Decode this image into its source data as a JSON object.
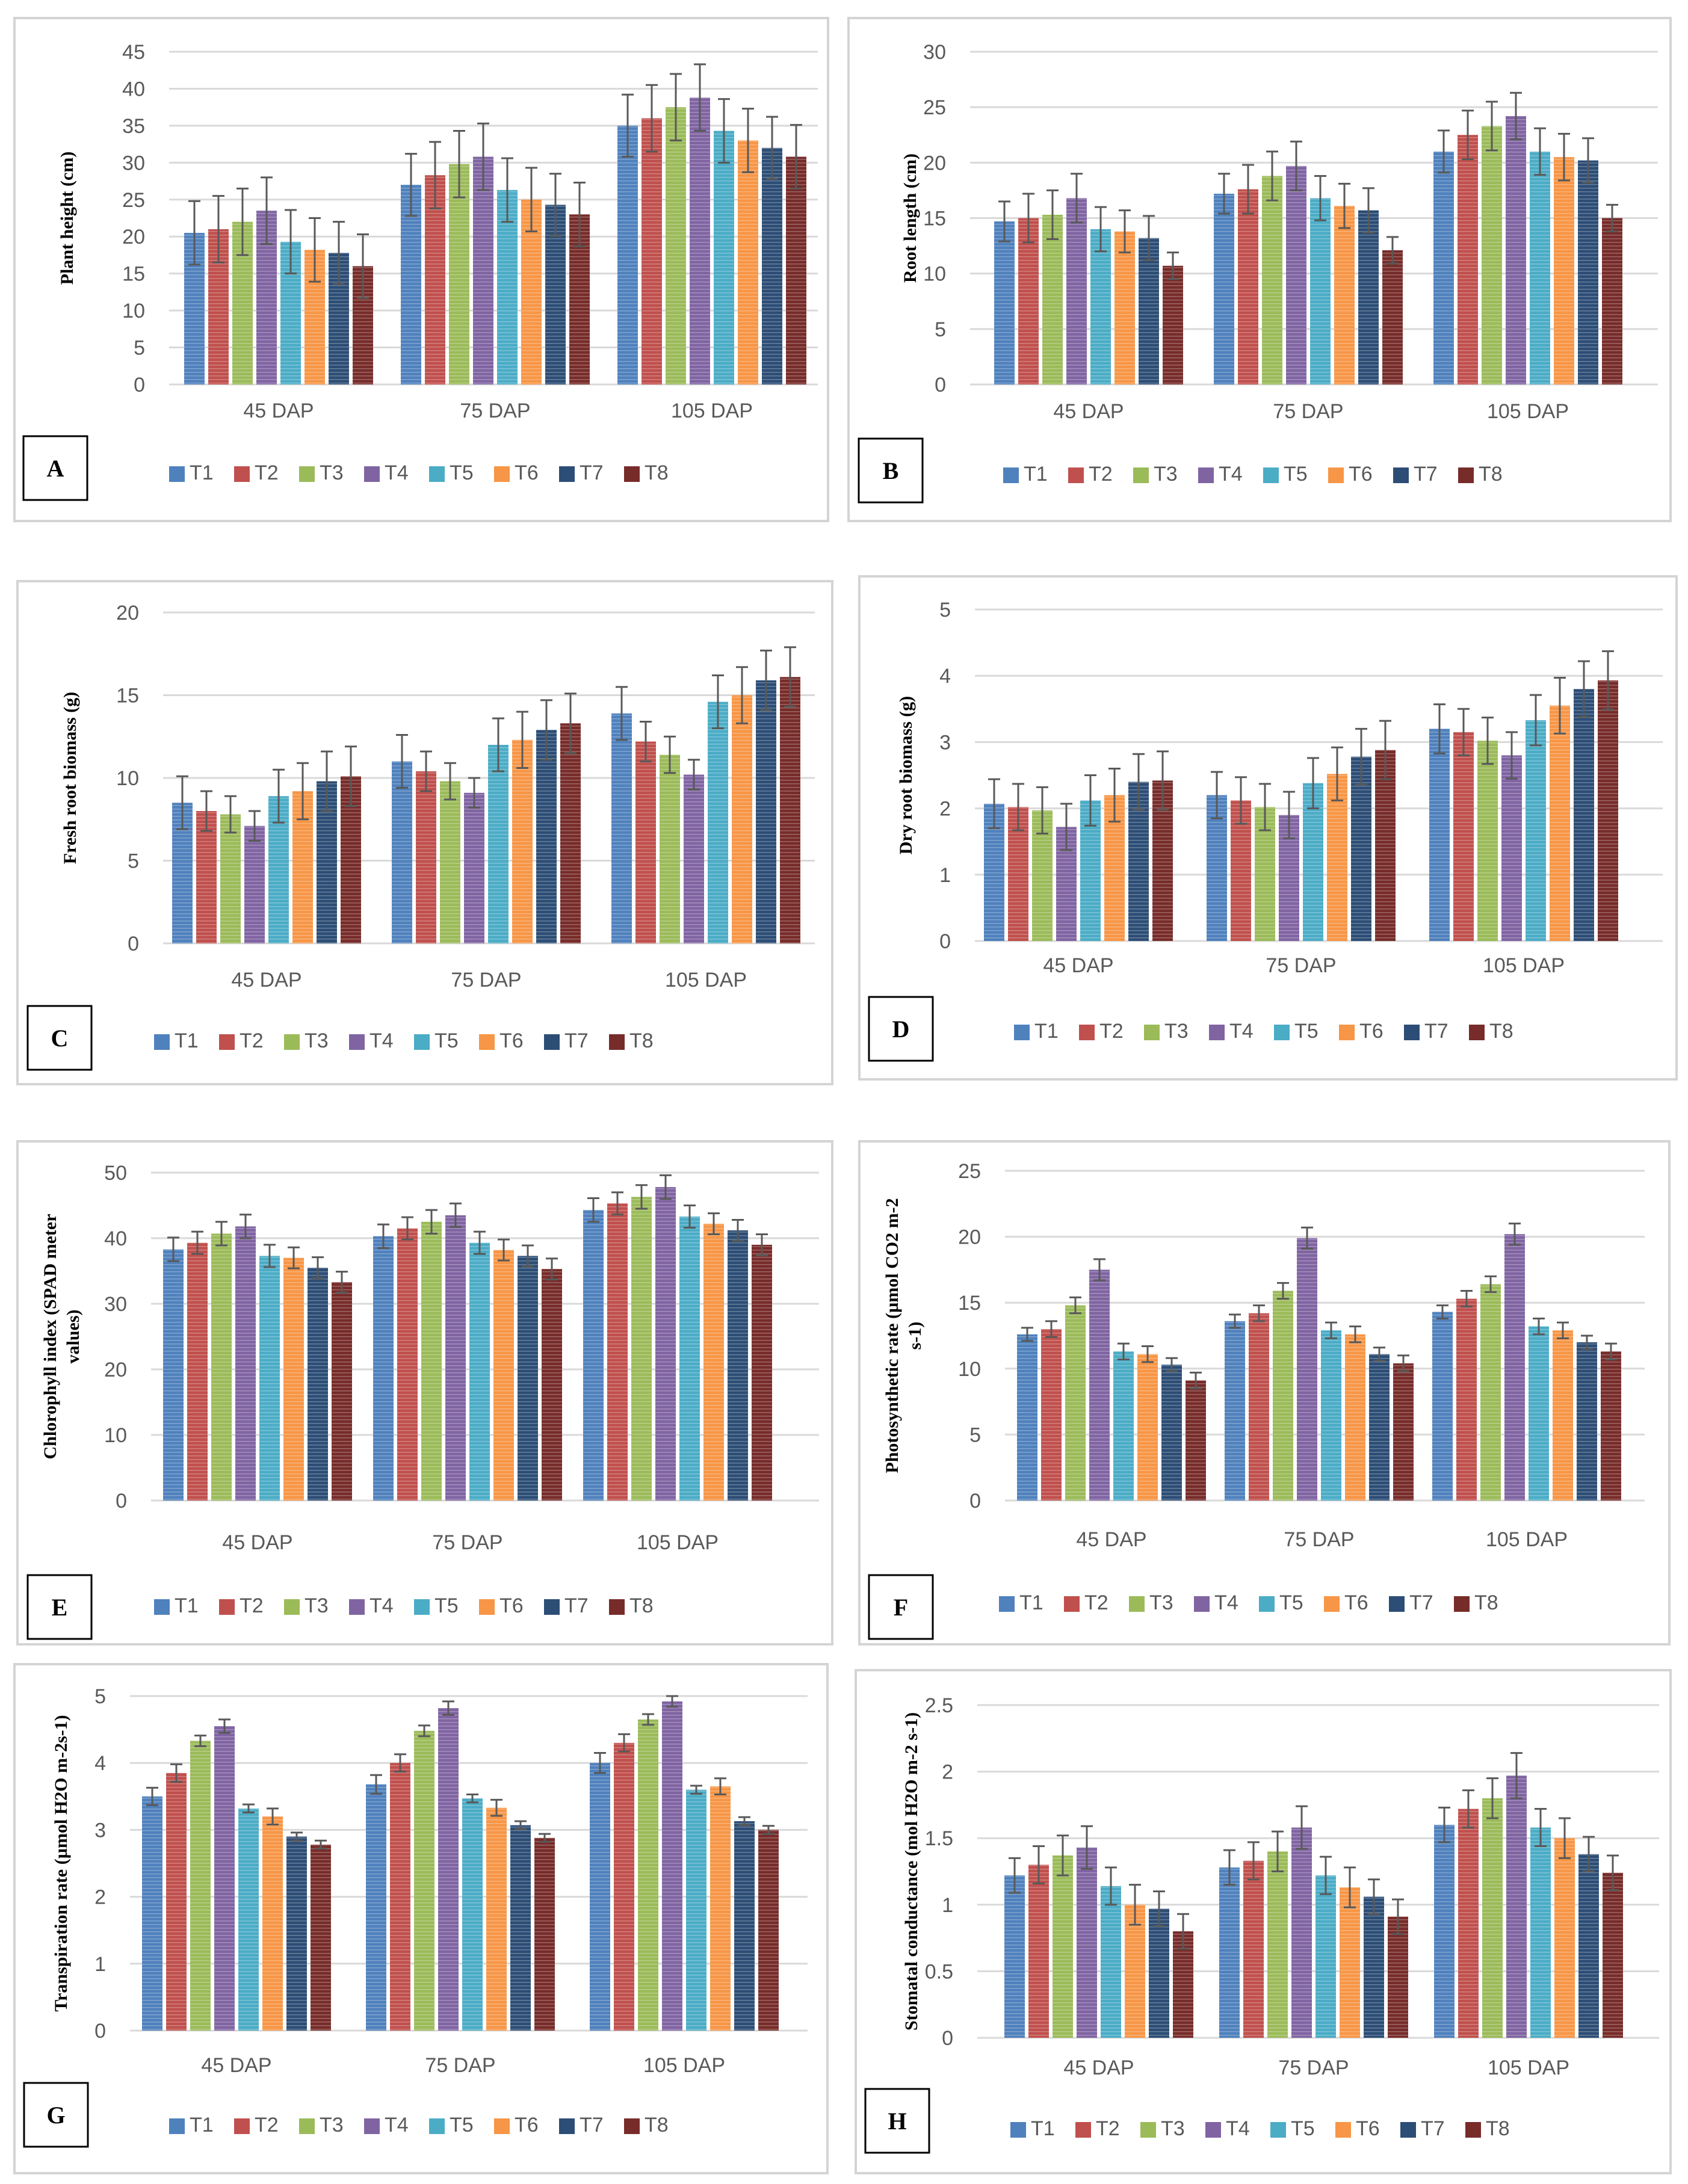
{
  "legend_labels": [
    "T1",
    "T2",
    "T3",
    "T4",
    "T5",
    "T6",
    "T7",
    "T8"
  ],
  "colors": {
    "T1": "#4f81bd",
    "T2": "#c0504d",
    "T3": "#9bbb59",
    "T4": "#8064a2",
    "T5": "#4bacc6",
    "T6": "#f79646",
    "T7": "#2c4d75",
    "T8": "#772c2a",
    "gridline": "#d9d9d9",
    "panel_border": "#d4d4d4",
    "error_bar": "#595959"
  },
  "chart_data": [
    {
      "panel": "A",
      "type": "bar",
      "ylabel": "Plant height (cm)",
      "categories": [
        "45 DAP",
        "75 DAP",
        "105 DAP"
      ],
      "ylim": [
        0,
        45
      ],
      "yticks": [
        0,
        5,
        10,
        15,
        20,
        25,
        30,
        35,
        40,
        45
      ],
      "series": [
        {
          "name": "T1",
          "values": [
            20.5,
            27,
            35
          ],
          "errors": [
            4.3,
            4.2,
            4.2
          ]
        },
        {
          "name": "T2",
          "values": [
            21,
            28.3,
            36
          ],
          "errors": [
            4.5,
            4.5,
            4.5
          ]
        },
        {
          "name": "T3",
          "values": [
            22,
            29.8,
            37.5
          ],
          "errors": [
            4.5,
            4.5,
            4.5
          ]
        },
        {
          "name": "T4",
          "values": [
            23.5,
            30.8,
            38.8
          ],
          "errors": [
            4.5,
            4.5,
            4.5
          ]
        },
        {
          "name": "T5",
          "values": [
            19.3,
            26.3,
            34.3
          ],
          "errors": [
            4.3,
            4.3,
            4.3
          ]
        },
        {
          "name": "T6",
          "values": [
            18.2,
            25,
            33
          ],
          "errors": [
            4.3,
            4.3,
            4.3
          ]
        },
        {
          "name": "T7",
          "values": [
            17.8,
            24.3,
            32
          ],
          "errors": [
            4.2,
            4.2,
            4.2
          ]
        },
        {
          "name": "T8",
          "values": [
            16,
            23,
            30.8
          ],
          "errors": [
            4.3,
            4.3,
            4.3
          ]
        }
      ]
    },
    {
      "panel": "B",
      "type": "bar",
      "ylabel": "Root length (cm)",
      "categories": [
        "45 DAP",
        "75 DAP",
        "105 DAP"
      ],
      "ylim": [
        0,
        30
      ],
      "yticks": [
        0,
        5,
        10,
        15,
        20,
        25,
        30
      ],
      "series": [
        {
          "name": "T1",
          "values": [
            14.7,
            17.2,
            21
          ],
          "errors": [
            1.8,
            1.8,
            1.9
          ]
        },
        {
          "name": "T2",
          "values": [
            15,
            17.6,
            22.5
          ],
          "errors": [
            2.2,
            2.2,
            2.2
          ]
        },
        {
          "name": "T3",
          "values": [
            15.3,
            18.8,
            23.3
          ],
          "errors": [
            2.2,
            2.2,
            2.2
          ]
        },
        {
          "name": "T4",
          "values": [
            16.8,
            19.7,
            24.2
          ],
          "errors": [
            2.2,
            2.2,
            2.1
          ]
        },
        {
          "name": "T5",
          "values": [
            14,
            16.8,
            21
          ],
          "errors": [
            2,
            2,
            2.1
          ]
        },
        {
          "name": "T6",
          "values": [
            13.8,
            16.1,
            20.5
          ],
          "errors": [
            1.9,
            2,
            2.1
          ]
        },
        {
          "name": "T7",
          "values": [
            13.2,
            15.7,
            20.2
          ],
          "errors": [
            2,
            2,
            2
          ]
        },
        {
          "name": "T8",
          "values": [
            10.7,
            12.1,
            15
          ],
          "errors": [
            1.2,
            1.2,
            1.2
          ]
        }
      ]
    },
    {
      "panel": "C",
      "type": "bar",
      "ylabel": "Fresh root biomass (g)",
      "categories": [
        "45 DAP",
        "75 DAP",
        "105 DAP"
      ],
      "ylim": [
        0,
        20
      ],
      "yticks": [
        0,
        5,
        10,
        15,
        20
      ],
      "series": [
        {
          "name": "T1",
          "values": [
            8.5,
            11,
            13.9
          ],
          "errors": [
            1.6,
            1.6,
            1.6
          ]
        },
        {
          "name": "T2",
          "values": [
            8,
            10.4,
            12.2
          ],
          "errors": [
            1.2,
            1.2,
            1.2
          ]
        },
        {
          "name": "T3",
          "values": [
            7.8,
            9.8,
            11.4
          ],
          "errors": [
            1.1,
            1.1,
            1.1
          ]
        },
        {
          "name": "T4",
          "values": [
            7.1,
            9.1,
            10.2
          ],
          "errors": [
            0.9,
            0.9,
            0.9
          ]
        },
        {
          "name": "T5",
          "values": [
            8.9,
            12,
            14.6
          ],
          "errors": [
            1.6,
            1.6,
            1.6
          ]
        },
        {
          "name": "T6",
          "values": [
            9.2,
            12.3,
            15
          ],
          "errors": [
            1.7,
            1.7,
            1.7
          ]
        },
        {
          "name": "T7",
          "values": [
            9.8,
            12.9,
            15.9
          ],
          "errors": [
            1.8,
            1.8,
            1.8
          ]
        },
        {
          "name": "T8",
          "values": [
            10.1,
            13.3,
            16.1
          ],
          "errors": [
            1.8,
            1.8,
            1.8
          ]
        }
      ]
    },
    {
      "panel": "D",
      "type": "bar",
      "ylabel": "Dry root biomass (g)",
      "categories": [
        "45 DAP",
        "75 DAP",
        "105 DAP"
      ],
      "ylim": [
        0,
        5
      ],
      "yticks": [
        0,
        1,
        2,
        3,
        4,
        5
      ],
      "series": [
        {
          "name": "T1",
          "values": [
            2.07,
            2.2,
            3.2
          ],
          "errors": [
            0.37,
            0.35,
            0.37
          ]
        },
        {
          "name": "T2",
          "values": [
            2.02,
            2.12,
            3.15
          ],
          "errors": [
            0.35,
            0.35,
            0.35
          ]
        },
        {
          "name": "T3",
          "values": [
            1.97,
            2.02,
            3.02
          ],
          "errors": [
            0.35,
            0.35,
            0.35
          ]
        },
        {
          "name": "T4",
          "values": [
            1.72,
            1.9,
            2.8
          ],
          "errors": [
            0.35,
            0.35,
            0.35
          ]
        },
        {
          "name": "T5",
          "values": [
            2.12,
            2.38,
            3.33
          ],
          "errors": [
            0.38,
            0.38,
            0.38
          ]
        },
        {
          "name": "T6",
          "values": [
            2.2,
            2.52,
            3.55
          ],
          "errors": [
            0.4,
            0.4,
            0.42
          ]
        },
        {
          "name": "T7",
          "values": [
            2.4,
            2.78,
            3.8
          ],
          "errors": [
            0.42,
            0.42,
            0.42
          ]
        },
        {
          "name": "T8",
          "values": [
            2.42,
            2.88,
            3.93
          ],
          "errors": [
            0.44,
            0.44,
            0.44
          ]
        }
      ]
    },
    {
      "panel": "E",
      "type": "bar",
      "ylabel": "Chlorophyll index (SPAD meter values)",
      "ylabel_lines": [
        "Chlorophyll index (SPAD meter",
        "values)"
      ],
      "categories": [
        "45 DAP",
        "75 DAP",
        "105 DAP"
      ],
      "ylim": [
        0,
        50
      ],
      "yticks": [
        0,
        10,
        20,
        30,
        40,
        50
      ],
      "series": [
        {
          "name": "T1",
          "values": [
            38.3,
            40.3,
            44.3
          ],
          "errors": [
            1.8,
            1.8,
            1.8
          ]
        },
        {
          "name": "T2",
          "values": [
            39.3,
            41.5,
            45.3
          ],
          "errors": [
            1.7,
            1.7,
            1.7
          ]
        },
        {
          "name": "T3",
          "values": [
            40.7,
            42.5,
            46.3
          ],
          "errors": [
            1.8,
            1.8,
            1.8
          ]
        },
        {
          "name": "T4",
          "values": [
            41.8,
            43.5,
            47.8
          ],
          "errors": [
            1.8,
            1.8,
            1.8
          ]
        },
        {
          "name": "T5",
          "values": [
            37.3,
            39.3,
            43.3
          ],
          "errors": [
            1.7,
            1.7,
            1.7
          ]
        },
        {
          "name": "T6",
          "values": [
            37,
            38.2,
            42.2
          ],
          "errors": [
            1.6,
            1.6,
            1.6
          ]
        },
        {
          "name": "T7",
          "values": [
            35.5,
            37.3,
            41.2
          ],
          "errors": [
            1.6,
            1.6,
            1.6
          ]
        },
        {
          "name": "T8",
          "values": [
            33.3,
            35.3,
            39
          ],
          "errors": [
            1.6,
            1.6,
            1.6
          ]
        }
      ]
    },
    {
      "panel": "F",
      "type": "bar",
      "ylabel": "Photosynthetic rate (µmol CO2 m-2 s-1)",
      "ylabel_lines": [
        "Photosynthetic rate (µmol CO2 m-2",
        "s-1)"
      ],
      "categories": [
        "45 DAP",
        "75 DAP",
        "105 DAP"
      ],
      "ylim": [
        0,
        25
      ],
      "yticks": [
        0,
        5,
        10,
        15,
        20,
        25
      ],
      "series": [
        {
          "name": "T1",
          "values": [
            12.6,
            13.6,
            14.3
          ],
          "errors": [
            0.5,
            0.5,
            0.5
          ]
        },
        {
          "name": "T2",
          "values": [
            13,
            14.2,
            15.3
          ],
          "errors": [
            0.6,
            0.6,
            0.6
          ]
        },
        {
          "name": "T3",
          "values": [
            14.8,
            15.9,
            16.4
          ],
          "errors": [
            0.6,
            0.6,
            0.6
          ]
        },
        {
          "name": "T4",
          "values": [
            17.5,
            19.9,
            20.2
          ],
          "errors": [
            0.8,
            0.8,
            0.8
          ]
        },
        {
          "name": "T5",
          "values": [
            11.3,
            12.9,
            13.2
          ],
          "errors": [
            0.6,
            0.6,
            0.6
          ]
        },
        {
          "name": "T6",
          "values": [
            11.1,
            12.6,
            12.9
          ],
          "errors": [
            0.6,
            0.6,
            0.6
          ]
        },
        {
          "name": "T7",
          "values": [
            10.3,
            11.1,
            12
          ],
          "errors": [
            0.5,
            0.5,
            0.5
          ]
        },
        {
          "name": "T8",
          "values": [
            9.1,
            10.4,
            11.3
          ],
          "errors": [
            0.6,
            0.6,
            0.6
          ]
        }
      ]
    },
    {
      "panel": "G",
      "type": "bar",
      "ylabel": "Transpiration rate (µmol H2O m-2s-1)",
      "categories": [
        "45 DAP",
        "75 DAP",
        "105 DAP"
      ],
      "ylim": [
        0,
        5
      ],
      "yticks": [
        0,
        1,
        2,
        3,
        4,
        5
      ],
      "series": [
        {
          "name": "T1",
          "values": [
            3.5,
            3.68,
            4
          ],
          "errors": [
            0.13,
            0.14,
            0.15
          ]
        },
        {
          "name": "T2",
          "values": [
            3.85,
            4,
            4.3
          ],
          "errors": [
            0.13,
            0.13,
            0.13
          ]
        },
        {
          "name": "T3",
          "values": [
            4.33,
            4.48,
            4.65
          ],
          "errors": [
            0.08,
            0.08,
            0.08
          ]
        },
        {
          "name": "T4",
          "values": [
            4.55,
            4.82,
            4.92
          ],
          "errors": [
            0.1,
            0.1,
            0.08
          ]
        },
        {
          "name": "T5",
          "values": [
            3.32,
            3.47,
            3.6
          ],
          "errors": [
            0.06,
            0.06,
            0.06
          ]
        },
        {
          "name": "T6",
          "values": [
            3.2,
            3.33,
            3.65
          ],
          "errors": [
            0.12,
            0.12,
            0.12
          ]
        },
        {
          "name": "T7",
          "values": [
            2.9,
            3.07,
            3.13
          ],
          "errors": [
            0.06,
            0.06,
            0.06
          ]
        },
        {
          "name": "T8",
          "values": [
            2.78,
            2.88,
            3
          ],
          "errors": [
            0.06,
            0.06,
            0.06
          ]
        }
      ]
    },
    {
      "panel": "H",
      "type": "bar",
      "ylabel": "Stomatal conductance (mol H2O m-2 s-1)",
      "categories": [
        "45 DAP",
        "75 DAP",
        "105 DAP"
      ],
      "ylim": [
        0,
        2.5
      ],
      "yticks": [
        0,
        0.5,
        1,
        1.5,
        2,
        2.5
      ],
      "series": [
        {
          "name": "T1",
          "values": [
            1.22,
            1.28,
            1.6
          ],
          "errors": [
            0.13,
            0.13,
            0.13
          ]
        },
        {
          "name": "T2",
          "values": [
            1.3,
            1.33,
            1.72
          ],
          "errors": [
            0.14,
            0.14,
            0.14
          ]
        },
        {
          "name": "T3",
          "values": [
            1.37,
            1.4,
            1.8
          ],
          "errors": [
            0.15,
            0.15,
            0.15
          ]
        },
        {
          "name": "T4",
          "values": [
            1.43,
            1.58,
            1.97
          ],
          "errors": [
            0.16,
            0.16,
            0.17
          ]
        },
        {
          "name": "T5",
          "values": [
            1.14,
            1.22,
            1.58
          ],
          "errors": [
            0.14,
            0.14,
            0.14
          ]
        },
        {
          "name": "T6",
          "values": [
            1,
            1.13,
            1.5
          ],
          "errors": [
            0.15,
            0.15,
            0.15
          ]
        },
        {
          "name": "T7",
          "values": [
            0.97,
            1.06,
            1.38
          ],
          "errors": [
            0.13,
            0.13,
            0.13
          ]
        },
        {
          "name": "T8",
          "values": [
            0.8,
            0.91,
            1.24
          ],
          "errors": [
            0.13,
            0.13,
            0.13
          ]
        }
      ]
    }
  ]
}
